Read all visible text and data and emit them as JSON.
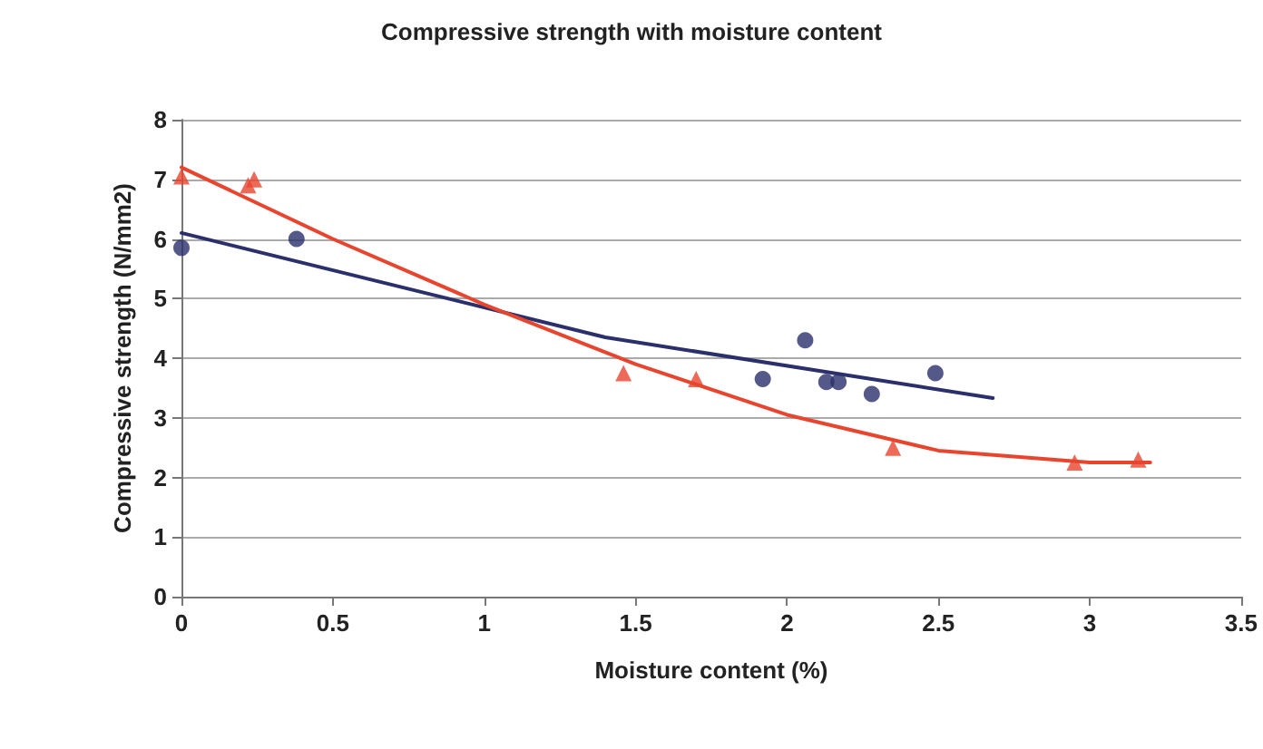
{
  "chart_data": {
    "type": "scatter",
    "title": "Compressive strength with moisture content",
    "xlabel": "Moisture content (%)",
    "ylabel": "Compressive strength (N/mm2)",
    "xlim": [
      0,
      3.5
    ],
    "xticks": [
      0,
      0.5,
      1,
      1.5,
      2,
      2.5,
      3,
      3.5
    ],
    "ylim": [
      0,
      8
    ],
    "yticks": [
      0,
      1,
      2,
      3,
      4,
      5,
      6,
      7,
      8
    ],
    "grid": "y",
    "series": [
      {
        "type": "line",
        "marker": "none",
        "color": "#2b2f6b",
        "x": [
          0,
          1.4,
          2.68
        ],
        "values": [
          6.1,
          4.35,
          3.33
        ]
      },
      {
        "type": "line",
        "marker": "none",
        "color": "#e8452f",
        "x": [
          0,
          0.5,
          1,
          1.5,
          2,
          2.5,
          3,
          3.2
        ],
        "values": [
          7.2,
          6.0,
          4.9,
          3.9,
          3.05,
          2.45,
          2.25,
          2.25
        ]
      },
      {
        "marker": "circle",
        "color": "#2b2f6b",
        "x": [
          0,
          0.38,
          1.92,
          2.06,
          2.13,
          2.17,
          2.28,
          2.49
        ],
        "values": [
          5.85,
          6.0,
          3.65,
          4.3,
          3.6,
          3.6,
          3.4,
          3.75
        ]
      },
      {
        "marker": "triangle",
        "color": "#e8452f",
        "x": [
          0,
          0.22,
          0.24,
          1.46,
          1.7,
          2.35,
          2.95,
          3.16
        ],
        "values": [
          7.05,
          6.9,
          7.0,
          3.75,
          3.65,
          2.5,
          2.25,
          2.3
        ]
      }
    ]
  }
}
